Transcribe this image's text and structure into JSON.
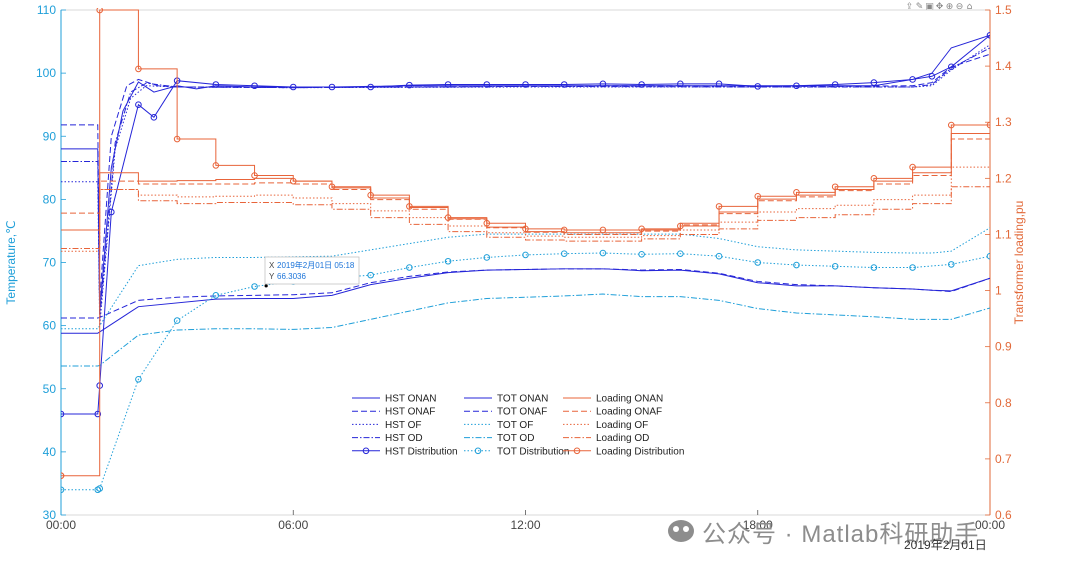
{
  "toolbar": {
    "icons": [
      "export-icon",
      "brush-icon",
      "datatip-icon",
      "pan-icon",
      "zoom-in-icon",
      "zoom-out-icon",
      "home-icon"
    ]
  },
  "watermark": {
    "text": "公众号 · Matlab科研助手"
  },
  "date_note": "2019年2月01日",
  "tooltip": {
    "x_label": "X",
    "x_value": "2019年2月01日 05:18",
    "y_label": "Y",
    "y_value": "66.3036"
  },
  "chart_data": {
    "type": "line",
    "x_unit": "hours",
    "xlim": [
      0,
      24
    ],
    "x_ticks": [
      0,
      6,
      12,
      18,
      24
    ],
    "x_tick_labels": [
      "00:00",
      "06:00",
      "12:00",
      "18:00",
      "00:00"
    ],
    "y_left": {
      "label": "Temperature,℃",
      "lim": [
        30,
        110
      ],
      "ticks": [
        30,
        40,
        50,
        60,
        70,
        80,
        90,
        100,
        110
      ],
      "color": "#1f9fd9"
    },
    "y_right": {
      "label": "Transformer loading,pu",
      "lim": [
        0.6,
        1.5
      ],
      "ticks": [
        0.6,
        0.7,
        0.8,
        0.9,
        1,
        1.1,
        1.2,
        1.3,
        1.4,
        1.5
      ],
      "color": "#e26a3a"
    },
    "colors": {
      "hst": "#2525d8",
      "tot": "#1f9fd9",
      "load": "#e8643a"
    },
    "series": [
      {
        "name": "HST ONAN",
        "axis": "left",
        "group": "hst",
        "dash": "solid",
        "x": [
          0,
          0.95,
          1.0,
          1.3,
          1.6,
          2.0,
          2.4,
          3.0,
          3.5,
          4,
          5,
          6,
          7,
          8,
          9,
          10,
          11,
          12,
          13,
          14,
          15,
          16,
          17,
          18,
          19,
          20,
          21,
          22,
          22.5,
          23,
          24
        ],
        "y": [
          88,
          88,
          62,
          85,
          94,
          98.6,
          97,
          98,
          97.5,
          98,
          97.8,
          97.8,
          97.8,
          97.9,
          98,
          98,
          98,
          98,
          98,
          98,
          98,
          98,
          98,
          98,
          98,
          98,
          98,
          99,
          100,
          104,
          106
        ]
      },
      {
        "name": "HST ONAF",
        "axis": "left",
        "group": "hst",
        "dash": "dash",
        "x": [
          0,
          0.95,
          1.0,
          1.3,
          1.7,
          2.0,
          2.5,
          3,
          4,
          6,
          8,
          10,
          12,
          14,
          16,
          18,
          20,
          22,
          22.5,
          23,
          24
        ],
        "y": [
          91.8,
          91.8,
          64,
          90,
          98,
          99,
          98,
          97.8,
          97.8,
          97.7,
          97.8,
          97.8,
          97.9,
          98,
          98,
          97.9,
          97.9,
          98,
          98.5,
          101,
          103
        ]
      },
      {
        "name": "HST OF",
        "axis": "left",
        "group": "hst",
        "dash": "dot",
        "x": [
          0,
          0.95,
          1.0,
          1.4,
          1.8,
          2.2,
          3,
          6,
          12,
          18,
          22,
          22.5,
          23,
          24
        ],
        "y": [
          82.8,
          82.8,
          60,
          88,
          96,
          98,
          97.8,
          97.7,
          97.8,
          97.8,
          97.8,
          98,
          100.5,
          104.5
        ]
      },
      {
        "name": "HST OD",
        "axis": "left",
        "group": "hst",
        "dash": "dashdot",
        "x": [
          0,
          0.95,
          1.0,
          1.4,
          1.8,
          2.2,
          3,
          6,
          12,
          18,
          22,
          22.5,
          23,
          24
        ],
        "y": [
          86,
          86,
          61,
          89,
          97,
          98.4,
          97.8,
          97.7,
          97.9,
          97.8,
          97.8,
          98.2,
          100.8,
          104
        ]
      },
      {
        "name": "HST Distribution",
        "axis": "left",
        "group": "hst",
        "dash": "solid",
        "marker": "circle",
        "x": [
          0,
          0.95,
          1.0,
          1.3,
          2.0,
          2.4,
          3,
          4,
          5,
          6,
          7,
          8,
          9,
          10,
          11,
          12,
          13,
          14,
          15,
          16,
          17,
          18,
          19,
          20,
          21,
          22,
          22.5,
          23,
          24
        ],
        "y": [
          46,
          46,
          50.5,
          78,
          95,
          93,
          98.8,
          98.2,
          98,
          97.8,
          97.8,
          97.8,
          98.1,
          98.2,
          98.2,
          98.2,
          98.2,
          98.3,
          98.2,
          98.3,
          98.3,
          97.9,
          98,
          98.2,
          98.5,
          99,
          99.5,
          101,
          106
        ]
      },
      {
        "name": "TOT ONAN",
        "axis": "left",
        "group": "hst",
        "dash": "solid",
        "x": [
          0,
          0.95,
          1.0,
          2,
          4,
          5,
          6,
          7,
          8,
          9,
          10,
          11,
          12,
          13,
          14,
          15,
          16,
          17,
          18,
          19,
          20,
          21,
          22,
          22.5,
          23,
          24
        ],
        "y": [
          58.8,
          58.8,
          59,
          63,
          64.2,
          64.3,
          64.3,
          64.8,
          66.5,
          67.5,
          68.4,
          68.8,
          68.9,
          69,
          69,
          68.7,
          68.8,
          68.2,
          66.8,
          66.3,
          66.3,
          66,
          65.8,
          65.6,
          65.5,
          67.5
        ]
      },
      {
        "name": "TOT ONAF",
        "axis": "left",
        "group": "hst",
        "dash": "dash",
        "x": [
          0,
          0.95,
          1.0,
          2,
          3,
          4,
          5,
          6,
          7,
          8,
          9,
          10,
          11,
          12,
          13,
          14,
          15,
          16,
          17,
          18,
          19,
          20,
          21,
          22,
          22.5,
          23,
          24
        ],
        "y": [
          61.2,
          61.2,
          61.3,
          64,
          64.5,
          64.7,
          64.8,
          64.9,
          65.2,
          66.8,
          67.8,
          68.5,
          68.8,
          68.9,
          69,
          69,
          68.8,
          68.9,
          68.3,
          67,
          66.5,
          66.3,
          66,
          65.8,
          65.6,
          65.4,
          67.5
        ]
      },
      {
        "name": "TOT OF",
        "axis": "left",
        "group": "tot",
        "dash": "dot",
        "x": [
          0,
          0.95,
          1.0,
          2,
          3,
          4,
          5,
          6,
          7,
          8,
          9,
          10,
          11,
          12,
          13,
          14,
          15,
          16,
          17,
          18,
          19,
          20,
          21,
          22,
          22.5,
          23,
          24
        ],
        "y": [
          59.5,
          59.5,
          60,
          69.5,
          70.5,
          70.8,
          70.8,
          70.9,
          71,
          72,
          73,
          74,
          74.5,
          74.5,
          74.5,
          74.5,
          74.5,
          74.5,
          73.8,
          72.5,
          72,
          71.8,
          71.6,
          71.5,
          71.5,
          71.8,
          75.5
        ]
      },
      {
        "name": "TOT OD",
        "axis": "left",
        "group": "tot",
        "dash": "dashdot",
        "x": [
          0,
          0.95,
          1.0,
          2,
          3,
          4,
          5,
          6,
          7,
          8,
          9,
          10,
          11,
          12,
          13,
          14,
          15,
          16,
          17,
          18,
          19,
          20,
          21,
          22,
          22.5,
          23,
          24
        ],
        "y": [
          53.6,
          53.6,
          53.7,
          58.5,
          59.3,
          59.5,
          59.5,
          59.4,
          59.7,
          61,
          62.3,
          63.6,
          64.3,
          64.5,
          64.7,
          65,
          64.6,
          64.6,
          64,
          62.7,
          62,
          61.7,
          61.4,
          61,
          61,
          61,
          62.8
        ]
      },
      {
        "name": "TOT Distribution",
        "axis": "left",
        "group": "tot",
        "dash": "dot",
        "marker": "circle",
        "x": [
          0,
          0.95,
          1.0,
          2,
          3,
          4,
          5,
          6,
          7,
          8,
          9,
          10,
          11,
          12,
          13,
          14,
          15,
          16,
          17,
          18,
          19,
          20,
          21,
          22,
          23,
          24
        ],
        "y": [
          34,
          34,
          34.2,
          51.5,
          60.8,
          64.8,
          66.2,
          67,
          67.5,
          68,
          69.2,
          70.2,
          70.8,
          71.2,
          71.4,
          71.5,
          71.3,
          71.4,
          71,
          70,
          69.6,
          69.4,
          69.2,
          69.2,
          69.7,
          71
        ]
      },
      {
        "name": "Loading ONAN",
        "axis": "right",
        "group": "load",
        "dash": "solid",
        "step": true,
        "x": [
          0,
          1,
          2,
          3,
          4,
          5,
          6,
          7,
          8,
          9,
          10,
          11,
          12,
          13,
          14,
          15,
          16,
          17,
          18,
          19,
          20,
          21,
          22,
          23,
          24
        ],
        "y": [
          1.108,
          1.21,
          1.195,
          1.196,
          1.198,
          1.2,
          1.195,
          1.183,
          1.165,
          1.148,
          1.128,
          1.113,
          1.105,
          1.103,
          1.103,
          1.108,
          1.12,
          1.14,
          1.163,
          1.17,
          1.18,
          1.195,
          1.21,
          1.28,
          1.28
        ]
      },
      {
        "name": "Loading ONAF",
        "axis": "right",
        "group": "load",
        "dash": "dash",
        "step": true,
        "x": [
          0,
          1,
          2,
          3,
          4,
          5,
          6,
          7,
          8,
          9,
          10,
          11,
          12,
          13,
          14,
          15,
          16,
          17,
          18,
          19,
          20,
          21,
          22,
          23,
          24
        ],
        "y": [
          1.138,
          1.195,
          1.19,
          1.19,
          1.19,
          1.192,
          1.19,
          1.18,
          1.162,
          1.145,
          1.127,
          1.112,
          1.104,
          1.1,
          1.1,
          1.106,
          1.117,
          1.137,
          1.16,
          1.167,
          1.178,
          1.19,
          1.205,
          1.27,
          1.27
        ]
      },
      {
        "name": "Loading OF",
        "axis": "right",
        "group": "load",
        "dash": "dot",
        "step": true,
        "x": [
          0,
          1,
          2,
          3,
          4,
          5,
          6,
          7,
          8,
          9,
          10,
          11,
          12,
          13,
          14,
          15,
          16,
          17,
          18,
          19,
          20,
          21,
          22,
          23,
          24
        ],
        "y": [
          1.07,
          1.18,
          1.17,
          1.167,
          1.168,
          1.17,
          1.165,
          1.155,
          1.142,
          1.13,
          1.115,
          1.103,
          1.097,
          1.095,
          1.095,
          1.098,
          1.108,
          1.122,
          1.14,
          1.146,
          1.152,
          1.162,
          1.17,
          1.22,
          1.22
        ]
      },
      {
        "name": "Loading OD",
        "axis": "right",
        "group": "load",
        "dash": "dashdot",
        "step": true,
        "x": [
          0,
          1,
          2,
          3,
          4,
          5,
          6,
          7,
          8,
          9,
          10,
          11,
          12,
          13,
          14,
          15,
          16,
          17,
          18,
          19,
          20,
          21,
          22,
          23,
          24
        ],
        "y": [
          1.075,
          1.18,
          1.16,
          1.155,
          1.157,
          1.157,
          1.153,
          1.145,
          1.13,
          1.118,
          1.105,
          1.095,
          1.09,
          1.088,
          1.088,
          1.092,
          1.1,
          1.11,
          1.125,
          1.13,
          1.135,
          1.145,
          1.155,
          1.185,
          1.185
        ]
      },
      {
        "name": "Loading Distribution",
        "axis": "right",
        "group": "load",
        "dash": "solid",
        "step": true,
        "marker": "circle",
        "x": [
          0,
          1,
          2,
          3,
          4,
          5,
          6,
          7,
          8,
          9,
          10,
          11,
          12,
          13,
          14,
          15,
          16,
          17,
          18,
          19,
          20,
          21,
          22,
          23,
          24
        ],
        "y": [
          0.67,
          1.5,
          1.395,
          1.27,
          1.223,
          1.205,
          1.195,
          1.185,
          1.17,
          1.15,
          1.13,
          1.12,
          1.11,
          1.108,
          1.108,
          1.11,
          1.115,
          1.15,
          1.168,
          1.175,
          1.185,
          1.2,
          1.22,
          1.295,
          1.295
        ]
      }
    ]
  }
}
